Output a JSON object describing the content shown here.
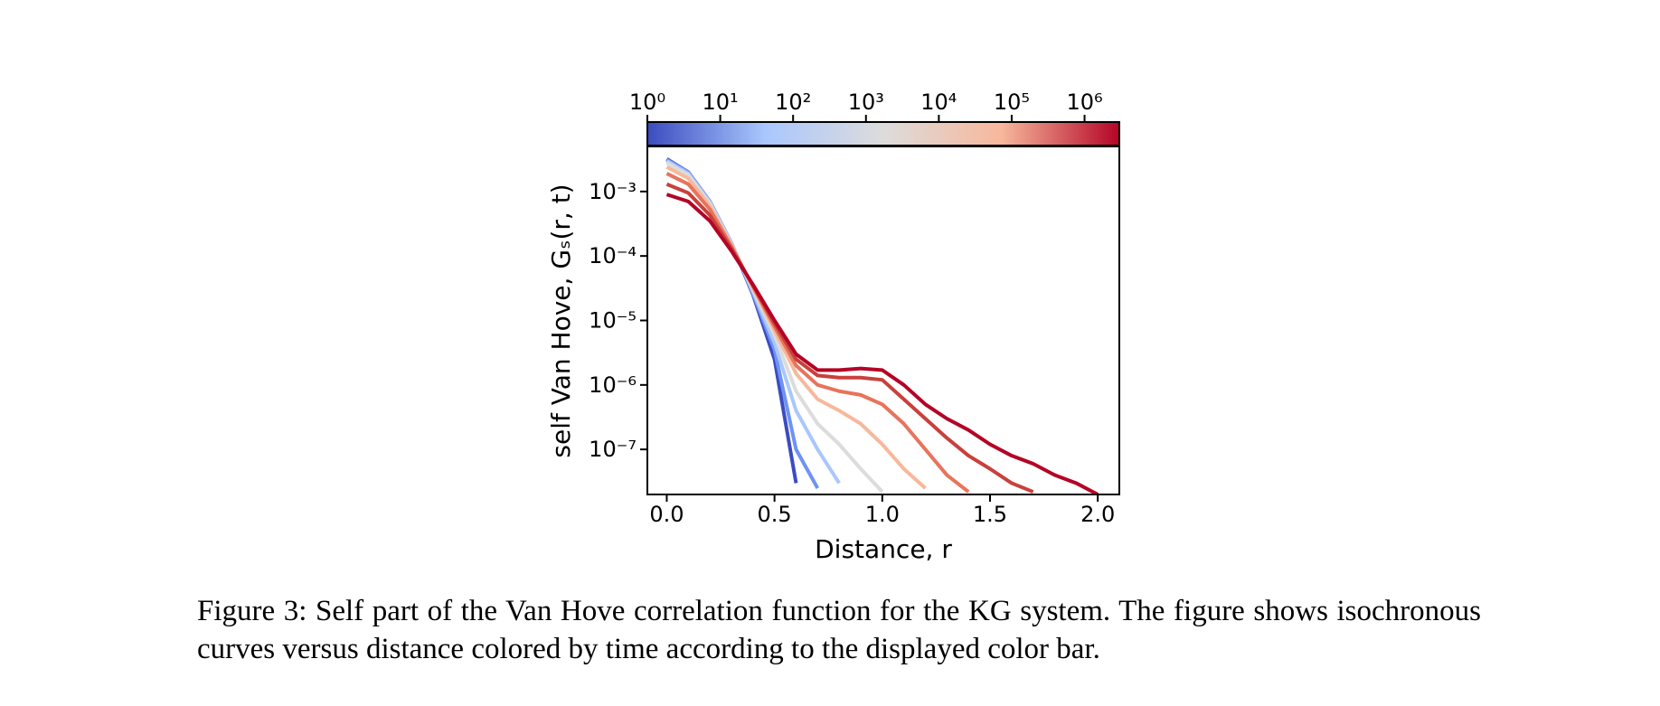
{
  "chart_data": {
    "type": "line",
    "xlabel": "Distance, r",
    "ylabel": "self Van Hove, Gₛ(r, t)",
    "yscale": "log",
    "xlim": [
      -0.09,
      2.1
    ],
    "ylim": [
      2e-08,
      0.005
    ],
    "xticks": [
      {
        "value": 0,
        "label": "0.0"
      },
      0.5,
      {
        "value": 1,
        "label": "1.0"
      },
      1.5,
      {
        "value": 2,
        "label": "2.0"
      }
    ],
    "yticks": [
      {
        "value": 0.001,
        "label": "10⁻³"
      },
      {
        "value": 0.0001,
        "label": "10⁻⁴"
      },
      {
        "value": 1e-05,
        "label": "10⁻⁵"
      },
      {
        "value": 1e-06,
        "label": "10⁻⁶"
      },
      {
        "value": 1e-07,
        "label": "10⁻⁷"
      }
    ],
    "x": [
      0,
      0.1,
      0.2,
      0.3,
      0.4,
      0.5,
      0.6,
      0.7,
      0.8,
      0.9,
      1.0,
      1.1,
      1.2,
      1.3,
      1.4,
      1.5,
      1.6,
      1.7,
      1.8,
      1.9,
      2.0
    ],
    "series": [
      {
        "color": "#3b4cc0",
        "values": [
          0.0032,
          0.002,
          0.0007,
          0.00016,
          2.5e-05,
          2.5e-06,
          3e-08,
          null,
          null,
          null,
          null,
          null,
          null,
          null,
          null,
          null,
          null,
          null,
          null,
          null,
          null
        ]
      },
      {
        "color": "#6f92f3",
        "values": [
          0.0031,
          0.002,
          0.0007,
          0.00016,
          2.6e-05,
          3.5e-06,
          1e-07,
          2.5e-08,
          null,
          null,
          null,
          null,
          null,
          null,
          null,
          null,
          null,
          null,
          null,
          null,
          null
        ]
      },
      {
        "color": "#aac7fd",
        "values": [
          0.003,
          0.0019,
          0.00068,
          0.00016,
          2.8e-05,
          4.5e-06,
          4e-07,
          1e-07,
          3e-08,
          null,
          null,
          null,
          null,
          null,
          null,
          null,
          null,
          null,
          null,
          null,
          null
        ]
      },
      {
        "color": "#dddcdc",
        "values": [
          0.0028,
          0.0018,
          0.00065,
          0.00015,
          3e-05,
          6e-06,
          8e-07,
          2.5e-07,
          1.2e-07,
          5e-08,
          2.2e-08,
          null,
          null,
          null,
          null,
          null,
          null,
          null,
          null,
          null,
          null
        ]
      },
      {
        "color": "#f7b89c",
        "values": [
          0.0024,
          0.0016,
          0.0006,
          0.00015,
          3.2e-05,
          7e-06,
          1.5e-06,
          6e-07,
          4e-07,
          2.5e-07,
          1.2e-07,
          5e-08,
          2.5e-08,
          null,
          null,
          null,
          null,
          null,
          null,
          null,
          null
        ]
      },
      {
        "color": "#e7745b",
        "values": [
          0.0019,
          0.0013,
          0.00053,
          0.00014,
          3.4e-05,
          8e-06,
          2e-06,
          1e-06,
          8e-07,
          7e-07,
          5e-07,
          2.5e-07,
          1e-07,
          4e-08,
          2.2e-08,
          null,
          null,
          null,
          null,
          null,
          null
        ]
      },
      {
        "color": "#c9403b",
        "values": [
          0.0013,
          0.00095,
          0.00043,
          0.00013,
          3.5e-05,
          9e-06,
          2.5e-06,
          1.4e-06,
          1.3e-06,
          1.3e-06,
          1.2e-06,
          6e-07,
          3e-07,
          1.5e-07,
          8e-08,
          5e-08,
          3e-08,
          2.2e-08,
          null,
          null,
          null
        ]
      },
      {
        "color": "#b40426",
        "values": [
          0.0009,
          0.0007,
          0.00035,
          0.00012,
          3.6e-05,
          1e-05,
          3e-06,
          1.7e-06,
          1.7e-06,
          1.8e-06,
          1.7e-06,
          1e-06,
          5e-07,
          3e-07,
          2e-07,
          1.2e-07,
          8e-08,
          6e-08,
          4e-08,
          3e-08,
          2e-08
        ]
      }
    ],
    "colorbar": {
      "scale": "log",
      "lim": [
        1,
        3000000
      ],
      "colors": [
        "#3b4cc0",
        "#aac7fd",
        "#dddcdc",
        "#f7b89c",
        "#b40426"
      ],
      "ticks": [
        {
          "value": 1,
          "label": "10⁰"
        },
        {
          "value": 10,
          "label": "10¹"
        },
        {
          "value": 100,
          "label": "10²"
        },
        {
          "value": 1000,
          "label": "10³"
        },
        {
          "value": 10000,
          "label": "10⁴"
        },
        {
          "value": 100000,
          "label": "10⁵"
        },
        {
          "value": 1000000,
          "label": "10⁶"
        }
      ]
    }
  },
  "caption": "Figure 3: Self part of the Van Hove correlation function for the KG system. The figure shows isochronous curves versus distance colored by time according to the displayed color bar."
}
